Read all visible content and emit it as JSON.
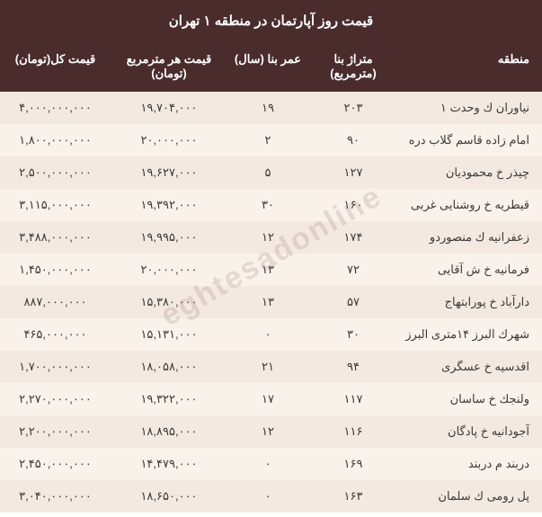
{
  "title": "قیمت روز آپارتمان در منطقه ۱ تهران",
  "watermark": "eghtesadonline",
  "columns": {
    "region": "منطقه",
    "area": "متراژ بنا (مترمربع)",
    "age": "عمر بنا (سال)",
    "price_per_m": "قیمت هر مترمربع (تومان)",
    "total": "قیمت کل(تومان)"
  },
  "colors": {
    "header_bg": "#4a2c2c",
    "header_fg": "#ffffff",
    "row_odd": "#f4e9e0",
    "row_even": "#f9f2ea",
    "text": "#3a3a3a"
  },
  "rows": [
    {
      "region": "نیاوران ك وحدت ۱",
      "area": "۲۰۳",
      "age": "۱۹",
      "ppm": "۱۹,۷۰۴,۰۰۰",
      "total": "۴,۰۰۰,۰۰۰,۰۰۰"
    },
    {
      "region": "امام زاده قاسم گلاب دره",
      "area": "۹۰",
      "age": "۲",
      "ppm": "۲۰,۰۰۰,۰۰۰",
      "total": "۱,۸۰۰,۰۰۰,۰۰۰"
    },
    {
      "region": "چیذر خ محمودیان",
      "area": "۱۲۷",
      "age": "۵",
      "ppm": "۱۹,۶۲۷,۰۰۰",
      "total": "۲,۵۰۰,۰۰۰,۰۰۰"
    },
    {
      "region": "قیطریه خ روشنایی غربی",
      "area": "۱۶۰",
      "age": "۳۰",
      "ppm": "۱۹,۳۹۲,۰۰۰",
      "total": "۳,۱۱۵,۰۰۰,۰۰۰"
    },
    {
      "region": "زعفرانیه ك منصوردو",
      "area": "۱۷۴",
      "age": "۱۲",
      "ppm": "۱۹,۹۹۵,۰۰۰",
      "total": "۳,۴۸۸,۰۰۰,۰۰۰"
    },
    {
      "region": "فرمانیه خ ش آقایی",
      "area": "۷۲",
      "age": "۱۳",
      "ppm": "۲۰,۰۰۰,۰۰۰",
      "total": "۱,۴۵۰,۰۰۰,۰۰۰"
    },
    {
      "region": "دارآباد خ پورابتهاج",
      "area": "۵۷",
      "age": "۱۳",
      "ppm": "۱۵,۳۸۰,۰۰۰",
      "total": "۸۸۷,۰۰۰,۰۰۰"
    },
    {
      "region": "شهرك البرز ۱۴متری البرز",
      "area": "۳۰",
      "age": "۰",
      "ppm": "۱۵,۱۳۱,۰۰۰",
      "total": "۴۶۵,۰۰۰,۰۰۰"
    },
    {
      "region": "اقدسیه خ عسگری",
      "area": "۹۴",
      "age": "۲۱",
      "ppm": "۱۸,۰۵۸,۰۰۰",
      "total": "۱,۷۰۰,۰۰۰,۰۰۰"
    },
    {
      "region": "ولنجك خ ساسان",
      "area": "۱۱۷",
      "age": "۱۷",
      "ppm": "۱۹,۳۲۲,۰۰۰",
      "total": "۲,۲۷۰,۰۰۰,۰۰۰"
    },
    {
      "region": "آجودانیه خ پادگان",
      "area": "۱۱۶",
      "age": "۱۲",
      "ppm": "۱۸,۸۹۵,۰۰۰",
      "total": "۲,۲۰۰,۰۰۰,۰۰۰"
    },
    {
      "region": "دربند م دربند",
      "area": "۱۶۹",
      "age": "۰",
      "ppm": "۱۴,۴۷۹,۰۰۰",
      "total": "۲,۴۵۰,۰۰۰,۰۰۰"
    },
    {
      "region": "پل رومی ك سلمان",
      "area": "۱۶۳",
      "age": "۰",
      "ppm": "۱۸,۶۵۰,۰۰۰",
      "total": "۳,۰۴۰,۰۰۰,۰۰۰"
    }
  ]
}
